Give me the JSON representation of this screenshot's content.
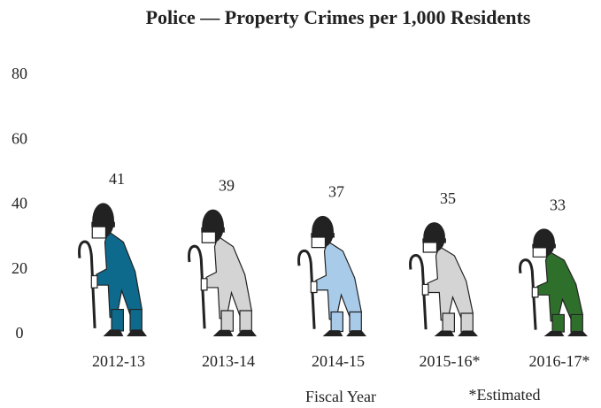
{
  "chart_data": {
    "type": "pictograph",
    "title": "Police — Property Crimes per 1,000 Residents",
    "x_label": "Fiscal Year",
    "note": "*Estimated",
    "categories": [
      "2012-13",
      "2013-14",
      "2014-15",
      "2015-16*",
      "2016-17*"
    ],
    "values": [
      41,
      39,
      37,
      35,
      33
    ],
    "colors": [
      "#0e6a8c",
      "#d4d4d4",
      "#a9cbea",
      "#d4d4d4",
      "#2f6f2c"
    ],
    "ylim": [
      0,
      80
    ],
    "yticks": [
      0,
      20,
      40,
      60,
      80
    ]
  }
}
